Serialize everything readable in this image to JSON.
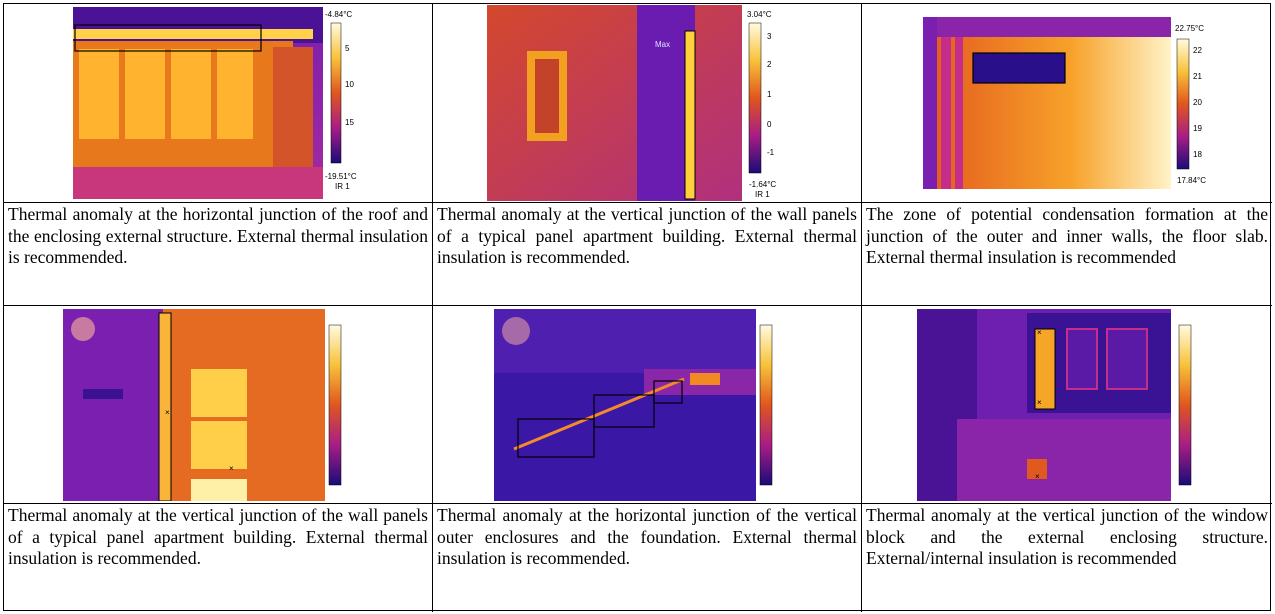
{
  "panels": [
    {
      "id": "p1",
      "caption": "Thermal anomaly at the horizontal junction of the roof and the enclosing external structure. External thermal insulation is recommended.",
      "scale": {
        "max": "-4.84°C",
        "min": "-19.51°C",
        "label": "IR 1",
        "ticks": [
          "5",
          "10",
          "15"
        ]
      }
    },
    {
      "id": "p2",
      "caption": "Thermal anomaly at the vertical junction of the wall panels of a typical panel apartment building. External thermal insulation is recommended.",
      "scale": {
        "max": "3.04°C",
        "min": "-1.64°C",
        "label": "IR 1",
        "marker": "Max",
        "ticks": [
          "3",
          "2",
          "1",
          "0",
          "-1"
        ]
      }
    },
    {
      "id": "p3",
      "caption": "The zone of potential condensation formation at the junction of the outer and inner walls, the floor slab. External thermal insulation is recommended",
      "scale": {
        "max": "22.75°C",
        "min": "17.84°C",
        "ticks": [
          "22",
          "21",
          "20",
          "19",
          "18"
        ]
      }
    },
    {
      "id": "p4",
      "caption": "Thermal anomaly at the vertical junction of the wall panels of a typical panel apartment building. External thermal insulation is recommended.",
      "scale": {}
    },
    {
      "id": "p5",
      "caption": "Thermal anomaly at the horizontal junction of the vertical outer enclosures and the foundation. External thermal insulation is recommended.",
      "scale": {}
    },
    {
      "id": "p6",
      "caption": "Thermal anomaly at the vertical junction of the window block and the external enclosing structure. External/internal insulation is recommended",
      "scale": {}
    }
  ],
  "colors": {
    "hot": "#fff6a0",
    "warm": "#f7a01a",
    "mid": "#c92a86",
    "cool": "#6a1bbf",
    "cold": "#1a0a7a"
  }
}
